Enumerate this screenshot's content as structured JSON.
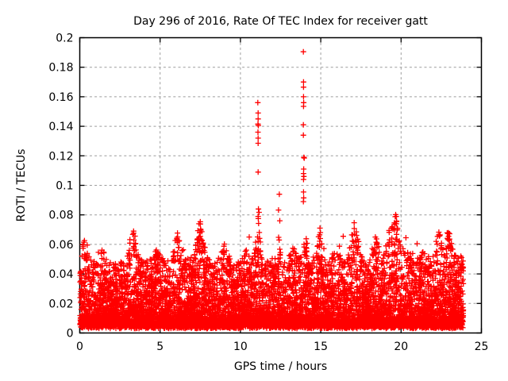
{
  "meta": {
    "background_color": "#ffffff",
    "text_color": "#000000",
    "axis_color": "#000000"
  },
  "chart_data": {
    "type": "scatter",
    "title": "Day 296 of 2016, Rate Of TEC Index for receiver gatt",
    "xlabel": "GPS time / hours",
    "ylabel": "ROTI / TECUs",
    "xlim": [
      0,
      25
    ],
    "ylim": [
      0,
      0.2
    ],
    "xticks": [
      0,
      5,
      10,
      15,
      20,
      25
    ],
    "xtick_labels": [
      "0",
      "5",
      "10",
      "15",
      "20",
      "25"
    ],
    "yticks": [
      0,
      0.02,
      0.04,
      0.06,
      0.08,
      0.1,
      0.12,
      0.14,
      0.16,
      0.18,
      0.2
    ],
    "ytick_labels": [
      "0",
      "0.02",
      "0.04",
      "0.06",
      "0.08",
      "0.1",
      "0.12",
      "0.14",
      "0.16",
      "0.18",
      "0.2"
    ],
    "grid": {
      "show": true,
      "color": "#9c9c9c",
      "dash": "3 3.2",
      "width": 1
    },
    "legend": {
      "visible": false
    },
    "marker": {
      "shape": "plus",
      "color": "#ff0000",
      "size": 7,
      "stroke_width": 1.3
    },
    "series": [
      {
        "name": "roti-background-band",
        "description": "dense noise band of ROTI values covering 0 to ~23.9 h, mostly 0.003-0.05 TECUs with grassy peaks to ~0.08",
        "generator": {
          "n": 9000,
          "x_min": 0.02,
          "x_max": 23.88,
          "y_floor": 0.003,
          "floor_jitter": 0.005,
          "base_amp": 0.043,
          "exponent": 3,
          "seed": 1296,
          "envelope_bumps": [
            [
              0.25,
              0.016,
              0.3
            ],
            [
              1.3,
              0.007,
              0.3
            ],
            [
              3.3,
              0.02,
              0.35
            ],
            [
              4.8,
              0.009,
              0.3
            ],
            [
              6.1,
              0.018,
              0.35
            ],
            [
              7.5,
              0.026,
              0.3
            ],
            [
              9.0,
              0.013,
              0.3
            ],
            [
              10.2,
              0.013,
              0.3
            ],
            [
              11.1,
              0.024,
              0.2
            ],
            [
              12.4,
              0.015,
              0.2
            ],
            [
              13.3,
              0.01,
              0.3
            ],
            [
              14.0,
              0.018,
              0.25
            ],
            [
              14.95,
              0.022,
              0.25
            ],
            [
              16.0,
              0.012,
              0.3
            ],
            [
              17.1,
              0.026,
              0.3
            ],
            [
              18.4,
              0.018,
              0.3
            ],
            [
              19.3,
              0.02,
              0.3
            ],
            [
              19.7,
              0.028,
              0.25
            ],
            [
              20.4,
              0.014,
              0.3
            ],
            [
              21.3,
              0.009,
              0.3
            ],
            [
              22.35,
              0.02,
              0.3
            ],
            [
              22.95,
              0.022,
              0.25
            ],
            [
              23.6,
              0.01,
              0.3
            ]
          ]
        }
      },
      {
        "name": "roti-outlier-spikes",
        "points": [
          [
            11.08,
            0.156
          ],
          [
            11.1,
            0.149
          ],
          [
            11.1,
            0.145
          ],
          [
            11.09,
            0.1415
          ],
          [
            11.11,
            0.1405
          ],
          [
            11.09,
            0.136
          ],
          [
            11.1,
            0.132
          ],
          [
            11.1,
            0.1285
          ],
          [
            11.1,
            0.109
          ],
          [
            11.16,
            0.0817
          ],
          [
            11.12,
            0.084
          ],
          [
            11.1,
            0.079
          ],
          [
            11.11,
            0.0775
          ],
          [
            11.13,
            0.0742
          ],
          [
            12.42,
            0.094
          ],
          [
            12.37,
            0.0833
          ],
          [
            12.45,
            0.076
          ],
          [
            13.92,
            0.1905
          ],
          [
            13.93,
            0.17
          ],
          [
            13.93,
            0.1665
          ],
          [
            13.93,
            0.16
          ],
          [
            13.94,
            0.156
          ],
          [
            13.93,
            0.1535
          ],
          [
            13.92,
            0.141
          ],
          [
            13.92,
            0.134
          ],
          [
            13.95,
            0.119
          ],
          [
            13.97,
            0.1185
          ],
          [
            13.94,
            0.111
          ],
          [
            13.93,
            0.108
          ],
          [
            13.95,
            0.106
          ],
          [
            13.93,
            0.104
          ],
          [
            13.93,
            0.0955
          ],
          [
            13.94,
            0.0915
          ],
          [
            13.92,
            0.089
          ],
          [
            7.5,
            0.0753
          ],
          [
            7.52,
            0.0704
          ],
          [
            7.48,
            0.068
          ],
          [
            7.5,
            0.0655
          ],
          [
            3.35,
            0.069
          ],
          [
            3.3,
            0.0667
          ],
          [
            6.08,
            0.0677
          ],
          [
            0.25,
            0.0615
          ],
          [
            14.95,
            0.071
          ],
          [
            14.93,
            0.0665
          ],
          [
            14.97,
            0.064
          ],
          [
            17.08,
            0.0747
          ],
          [
            17.1,
            0.067
          ],
          [
            19.25,
            0.0694
          ],
          [
            19.7,
            0.079
          ],
          [
            19.72,
            0.0755
          ],
          [
            19.68,
            0.074
          ],
          [
            22.35,
            0.0665
          ],
          [
            22.95,
            0.0677
          ],
          [
            16.4,
            0.0655
          ],
          [
            18.4,
            0.065
          ],
          [
            20.3,
            0.0645
          ],
          [
            9.0,
            0.0602
          ],
          [
            10.55,
            0.065
          ],
          [
            21.0,
            0.0605
          ]
        ]
      }
    ]
  }
}
